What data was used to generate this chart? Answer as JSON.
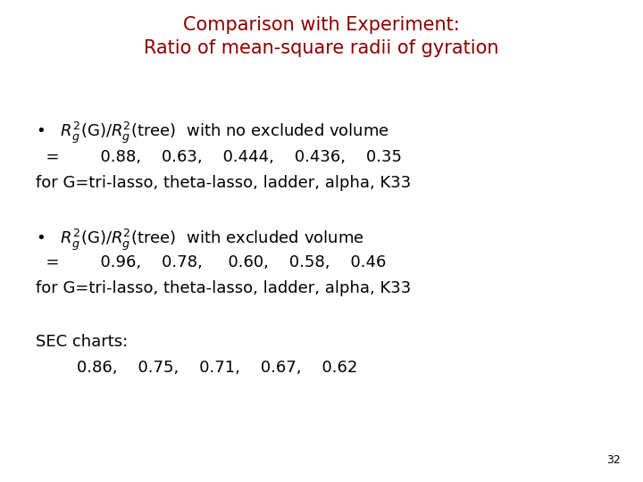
{
  "title_line1": "Comparison with Experiment:",
  "title_line2": "Ratio of mean-square radii of gyration",
  "title_color": "#8B0000",
  "background_color": "#FFFFFF",
  "slide_number": "32",
  "bullet1_line2": "  =        0.88,    0.63,    0.444,    0.436,    0.35",
  "bullet1_line3": "for G=tri-lasso, theta-lasso, ladder, alpha, K33",
  "bullet2_line1_suffix": "  with excluded volume",
  "bullet2_line2": "  =        0.96,    0.78,     0.60,    0.58,    0.46",
  "bullet2_line3": "for G=tri-lasso, theta-lasso, ladder, alpha, K33",
  "sec_label": "SEC charts:",
  "sec_values": "        0.86,    0.75,    0.71,    0.67,    0.62",
  "font_size_title": 15,
  "font_size_body": 13,
  "font_size_slide_num": 9
}
